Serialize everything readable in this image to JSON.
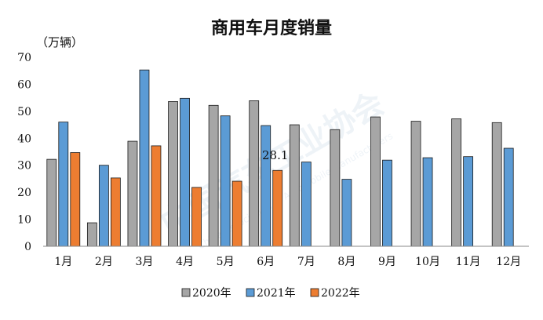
{
  "chart_data": {
    "type": "bar",
    "title": "商用车月度销量",
    "unit_label": "（万辆）",
    "ylim": [
      0,
      70
    ],
    "yticks": [
      0,
      10,
      20,
      30,
      40,
      50,
      60,
      70
    ],
    "categories": [
      "1月",
      "2月",
      "3月",
      "4月",
      "5月",
      "6月",
      "7月",
      "8月",
      "9月",
      "10月",
      "11月",
      "12月"
    ],
    "series": [
      {
        "name": "2020年",
        "color": "#a6a6a6",
        "values": [
          32.2,
          8.7,
          38.9,
          53.6,
          52.2,
          53.9,
          45.0,
          43.2,
          47.9,
          46.3,
          47.2,
          45.8
        ]
      },
      {
        "name": "2021年",
        "color": "#5b9bd5",
        "values": [
          46.0,
          30.0,
          65.3,
          54.8,
          48.3,
          44.7,
          31.2,
          24.8,
          31.9,
          32.8,
          33.2,
          36.3
        ]
      },
      {
        "name": "2022年",
        "color": "#ed7d31",
        "values": [
          34.7,
          25.3,
          37.2,
          21.8,
          24.1,
          28.1,
          null,
          null,
          null,
          null,
          null,
          null
        ]
      }
    ],
    "annotations": [
      {
        "text": "28.1"
      }
    ],
    "legend_position": "bottom",
    "grid": false
  },
  "watermark": {
    "text": "中国汽车工业协会",
    "subtext": "China Association of Automobile Manufacturers"
  }
}
